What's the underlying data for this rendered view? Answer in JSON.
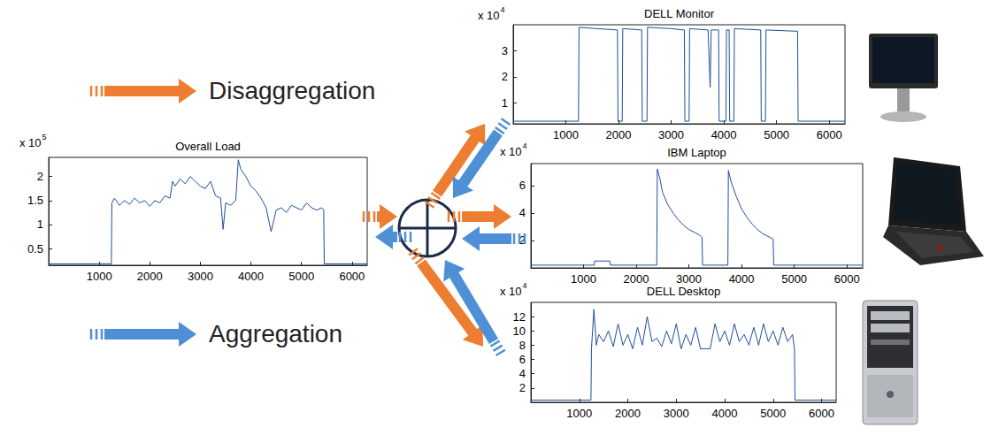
{
  "diagram": {
    "top_label": "Disaggregation",
    "bottom_label": "Aggregation"
  },
  "chart_data": [
    {
      "type": "line",
      "title": "Overall Load",
      "axis_multiplier": {
        "base": "x 10",
        "exponent": "5"
      },
      "color": "#1f4e9c",
      "x": [
        0,
        600,
        1240,
        1250,
        1300,
        1400,
        1500,
        1600,
        1700,
        1800,
        1900,
        2000,
        2100,
        2200,
        2300,
        2400,
        2450,
        2500,
        2600,
        2700,
        2800,
        2900,
        3000,
        3100,
        3200,
        3300,
        3400,
        3450,
        3500,
        3600,
        3700,
        3750,
        3800,
        3900,
        4000,
        4100,
        4200,
        4300,
        4400,
        4500,
        4600,
        4700,
        4800,
        4900,
        5000,
        5100,
        5200,
        5300,
        5400,
        5440,
        5450,
        6000,
        6300
      ],
      "values": [
        0.18,
        0.18,
        0.18,
        1.45,
        1.55,
        1.4,
        1.5,
        1.42,
        1.55,
        1.45,
        1.5,
        1.38,
        1.5,
        1.45,
        1.6,
        1.55,
        1.9,
        1.8,
        1.95,
        1.85,
        2.0,
        1.9,
        1.8,
        1.75,
        1.9,
        1.6,
        1.55,
        0.9,
        1.45,
        1.4,
        1.5,
        2.35,
        2.15,
        2.0,
        1.8,
        1.7,
        1.55,
        1.35,
        0.85,
        1.3,
        1.35,
        1.25,
        1.4,
        1.35,
        1.3,
        1.45,
        1.35,
        1.3,
        1.35,
        1.3,
        0.18,
        0.18,
        0.18
      ],
      "xlim": [
        0,
        6300
      ],
      "xticks": [
        1000,
        2000,
        3000,
        4000,
        5000,
        6000
      ],
      "ylim": [
        0.15,
        2.4
      ],
      "yticks": [
        0.5,
        1,
        1.5,
        2
      ]
    },
    {
      "type": "line",
      "title": "DELL Monitor",
      "axis_multiplier": {
        "base": "x 10",
        "exponent": "4"
      },
      "color": "#1f4e9c",
      "x": [
        0,
        1240,
        1250,
        1600,
        1980,
        1990,
        2070,
        2080,
        2440,
        2450,
        2540,
        2550,
        3000,
        3250,
        3260,
        3340,
        3350,
        3700,
        3740,
        3760,
        3900,
        3910,
        4040,
        4050,
        4100,
        4110,
        4190,
        4200,
        4700,
        4710,
        4790,
        4800,
        5400,
        5410,
        6300
      ],
      "values": [
        0.3,
        0.3,
        3.9,
        3.85,
        3.8,
        0.3,
        0.3,
        3.85,
        3.8,
        0.3,
        0.3,
        3.9,
        3.85,
        3.8,
        0.3,
        0.3,
        3.85,
        3.8,
        1.6,
        3.8,
        3.8,
        0.3,
        0.3,
        3.8,
        3.8,
        0.3,
        0.3,
        3.85,
        3.8,
        0.3,
        0.3,
        3.8,
        3.75,
        0.3,
        0.3
      ],
      "xlim": [
        0,
        6300
      ],
      "xticks": [
        1000,
        2000,
        3000,
        4000,
        5000,
        6000
      ],
      "ylim": [
        0.2,
        4.0
      ],
      "yticks": [
        1,
        2,
        3
      ]
    },
    {
      "type": "line",
      "title": "IBM Laptop",
      "axis_multiplier": {
        "base": "x 10",
        "exponent": "4"
      },
      "color": "#1f4e9c",
      "x": [
        0,
        1200,
        1210,
        1500,
        1510,
        2390,
        2400,
        2450,
        2500,
        2600,
        2700,
        2800,
        2900,
        3000,
        3100,
        3200,
        3250,
        3260,
        3740,
        3750,
        3800,
        3900,
        4000,
        4100,
        4200,
        4300,
        4400,
        4500,
        4600,
        4610,
        6300
      ],
      "values": [
        0.2,
        0.2,
        0.5,
        0.5,
        0.2,
        0.2,
        7.2,
        6.5,
        5.5,
        4.6,
        4.0,
        3.5,
        3.1,
        2.8,
        2.6,
        2.4,
        2.2,
        0.2,
        0.2,
        7.1,
        6.3,
        5.2,
        4.3,
        3.7,
        3.2,
        2.8,
        2.5,
        2.3,
        2.1,
        0.2,
        0.2
      ],
      "xlim": [
        0,
        6300
      ],
      "xticks": [
        1000,
        2000,
        3000,
        4000,
        5000,
        6000
      ],
      "ylim": [
        0,
        7.6
      ],
      "yticks": [
        2,
        4,
        6
      ]
    },
    {
      "type": "line",
      "title": "DELL Desktop",
      "axis_multiplier": {
        "base": "x 10",
        "exponent": "4"
      },
      "color": "#1f4e9c",
      "x": [
        0,
        1240,
        1250,
        1300,
        1350,
        1400,
        1500,
        1600,
        1700,
        1800,
        1900,
        2000,
        2100,
        2200,
        2300,
        2400,
        2500,
        2600,
        2700,
        2800,
        2900,
        3000,
        3100,
        3200,
        3300,
        3400,
        3500,
        3600,
        3700,
        3800,
        3900,
        4000,
        4100,
        4200,
        4300,
        4400,
        4500,
        4600,
        4700,
        4800,
        4900,
        5000,
        5100,
        5200,
        5300,
        5400,
        5440,
        5450,
        6300
      ],
      "values": [
        0.3,
        0.3,
        7.5,
        13,
        8,
        9.5,
        8.5,
        10,
        7.8,
        11,
        8,
        9.5,
        7.5,
        10.5,
        8,
        12,
        8.5,
        9,
        7.8,
        10,
        8.2,
        11,
        7.5,
        9.5,
        8,
        10.5,
        7.5,
        7.5,
        7.5,
        11,
        8.5,
        10,
        8,
        11,
        8.5,
        9.5,
        8,
        10.5,
        8,
        11,
        8.5,
        10,
        8,
        10.5,
        8.5,
        9.5,
        7.5,
        0.3,
        0.3
      ],
      "xlim": [
        0,
        6300
      ],
      "xticks": [
        1000,
        2000,
        3000,
        4000,
        5000,
        6000
      ],
      "ylim": [
        0,
        14
      ],
      "yticks": [
        2,
        4,
        6,
        8,
        10,
        12
      ]
    }
  ]
}
